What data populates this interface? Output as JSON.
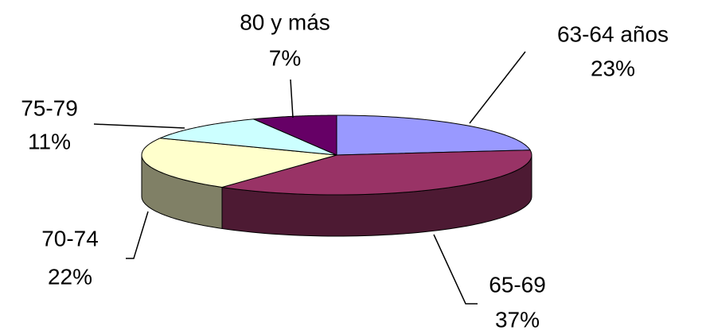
{
  "chart_data": {
    "type": "pie",
    "categories": [
      "63-64 años",
      "65-69",
      "70-74",
      "75-79",
      "80 y más"
    ],
    "values": [
      23,
      37,
      22,
      11,
      7
    ],
    "value_labels": [
      "23%",
      "37%",
      "22%",
      "11%",
      "7%"
    ],
    "colors": [
      "#9999ff",
      "#993366",
      "#ffffcc",
      "#ccffff",
      "#660066"
    ]
  }
}
